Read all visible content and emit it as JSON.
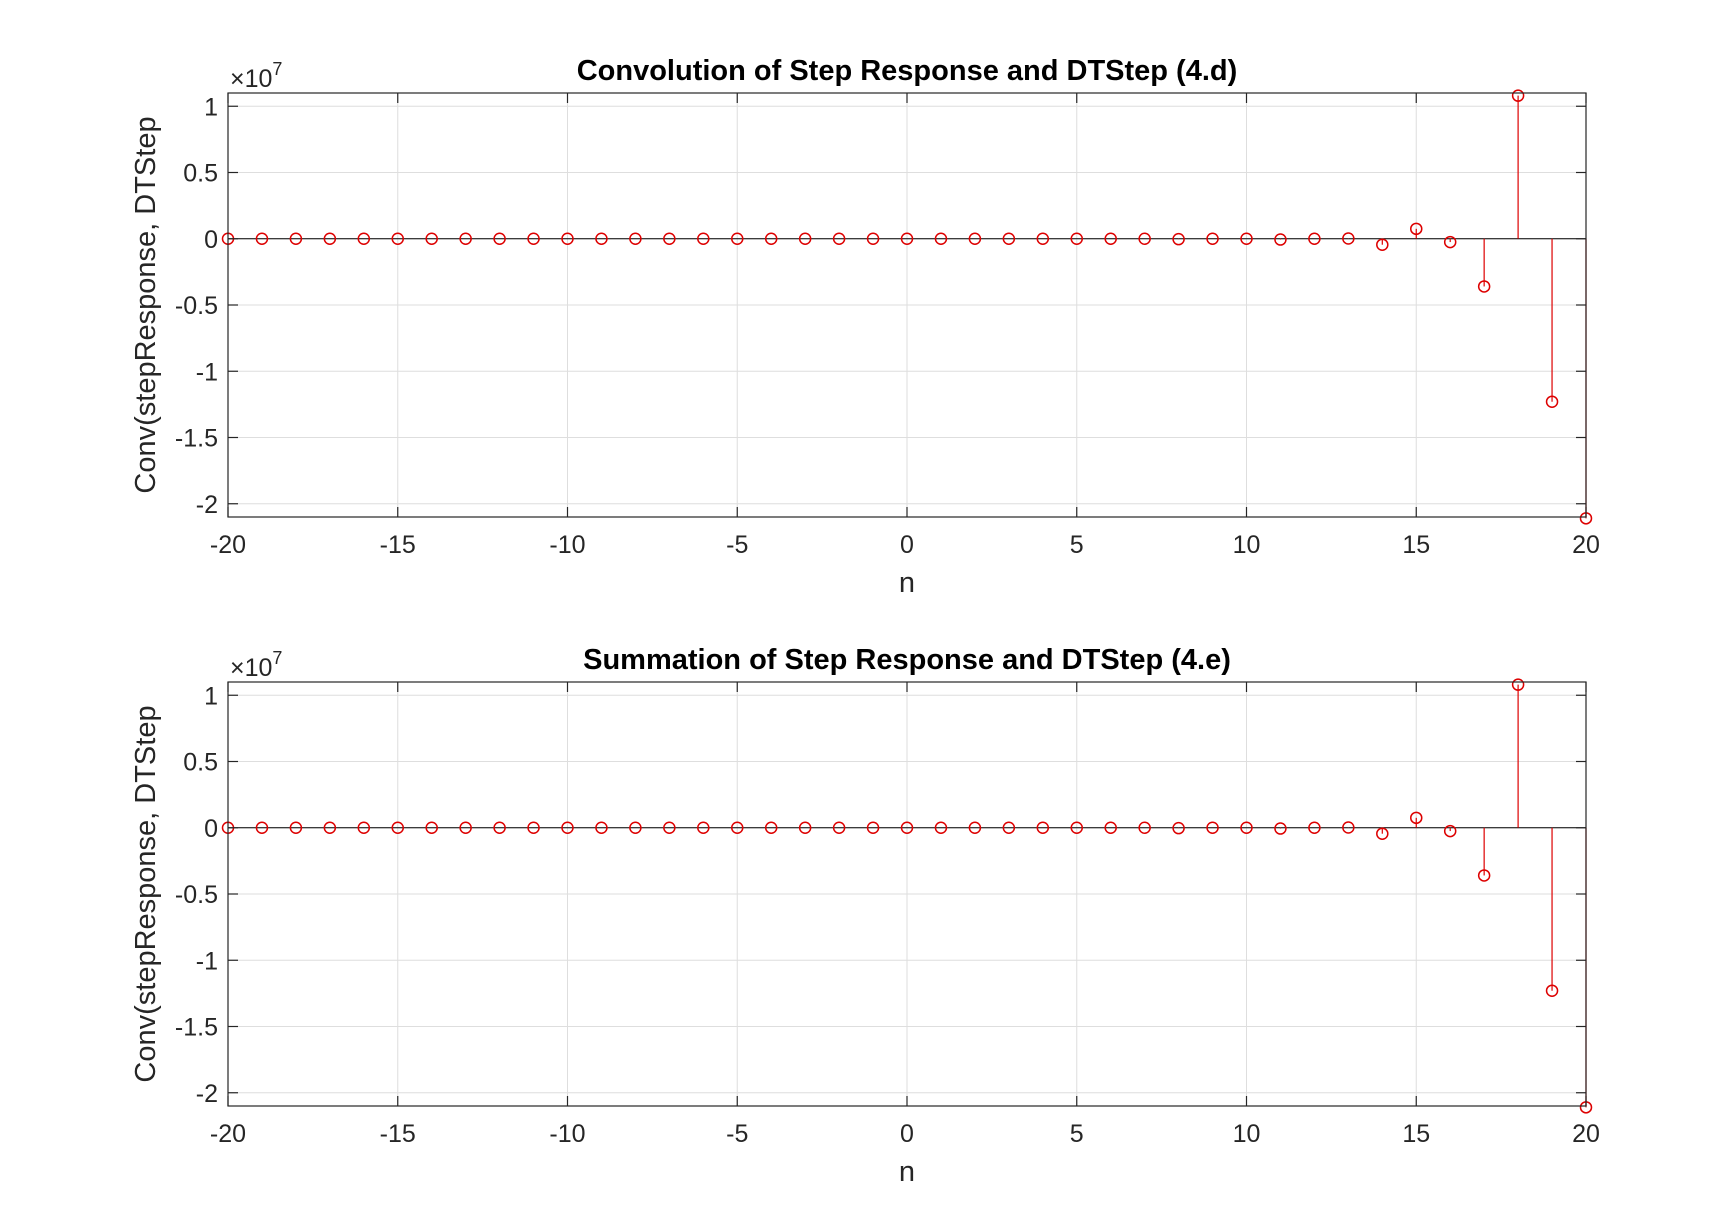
{
  "colors": {
    "stem": "#dd0000",
    "axis": "#262626",
    "grid": "#dedede",
    "background": "#ffffff"
  },
  "chart_data": [
    {
      "type": "stem",
      "title": "Convolution of Step Response and DTStep (4.d)",
      "xlabel": "n",
      "ylabel": "Conv(stepResponse, DTStep",
      "xlim": [
        -20,
        20
      ],
      "ylim": [
        -21000000.0,
        11000000.0
      ],
      "xticks": [
        -20,
        -15,
        -10,
        -5,
        0,
        5,
        10,
        15,
        20
      ],
      "yticks": [
        10000000.0,
        5000000.0,
        0,
        -5000000.0,
        -10000000.0,
        -15000000.0,
        -20000000.0
      ],
      "ytick_labels": [
        "1",
        "0.5",
        "0",
        "-0.5",
        "-1",
        "-1.5",
        "-2"
      ],
      "xtick_labels": [
        "-20",
        "-15",
        "-10",
        "-5",
        "0",
        "5",
        "10",
        "15",
        "20"
      ],
      "exponent_base": "×10",
      "exponent_power": "7",
      "grid": true,
      "x": [
        -20,
        -19,
        -18,
        -17,
        -16,
        -15,
        -14,
        -13,
        -12,
        -11,
        -10,
        -9,
        -8,
        -7,
        -6,
        -5,
        -4,
        -3,
        -2,
        -1,
        0,
        1,
        2,
        3,
        4,
        5,
        6,
        7,
        8,
        9,
        10,
        11,
        12,
        13,
        14,
        15,
        16,
        17,
        18,
        19,
        20
      ],
      "y": [
        0,
        0,
        0,
        0,
        0,
        0,
        0,
        0,
        0,
        0,
        0,
        0,
        0,
        0,
        0,
        0,
        0,
        0,
        0,
        0,
        0,
        0,
        0,
        0,
        0,
        0,
        0,
        0,
        -30000,
        0,
        0,
        -60000,
        0,
        20000,
        -450000,
        750000,
        -250000,
        -3600000,
        10800000,
        -12300000,
        -21100000
      ]
    },
    {
      "type": "stem",
      "title": "Summation of Step Response and DTStep (4.e)",
      "xlabel": "n",
      "ylabel": "Conv(stepResponse, DTStep",
      "xlim": [
        -20,
        20
      ],
      "ylim": [
        -21000000.0,
        11000000.0
      ],
      "xticks": [
        -20,
        -15,
        -10,
        -5,
        0,
        5,
        10,
        15,
        20
      ],
      "yticks": [
        10000000.0,
        5000000.0,
        0,
        -5000000.0,
        -10000000.0,
        -15000000.0,
        -20000000.0
      ],
      "ytick_labels": [
        "1",
        "0.5",
        "0",
        "-0.5",
        "-1",
        "-1.5",
        "-2"
      ],
      "xtick_labels": [
        "-20",
        "-15",
        "-10",
        "-5",
        "0",
        "5",
        "10",
        "15",
        "20"
      ],
      "exponent_base": "×10",
      "exponent_power": "7",
      "grid": true,
      "x": [
        -20,
        -19,
        -18,
        -17,
        -16,
        -15,
        -14,
        -13,
        -12,
        -11,
        -10,
        -9,
        -8,
        -7,
        -6,
        -5,
        -4,
        -3,
        -2,
        -1,
        0,
        1,
        2,
        3,
        4,
        5,
        6,
        7,
        8,
        9,
        10,
        11,
        12,
        13,
        14,
        15,
        16,
        17,
        18,
        19,
        20
      ],
      "y": [
        0,
        0,
        0,
        0,
        0,
        0,
        0,
        0,
        0,
        0,
        0,
        0,
        0,
        0,
        0,
        0,
        0,
        0,
        0,
        0,
        0,
        0,
        0,
        0,
        0,
        0,
        0,
        0,
        -30000,
        0,
        0,
        -60000,
        0,
        20000,
        -450000,
        750000,
        -250000,
        -3600000,
        10800000,
        -12300000,
        -21100000
      ]
    }
  ]
}
